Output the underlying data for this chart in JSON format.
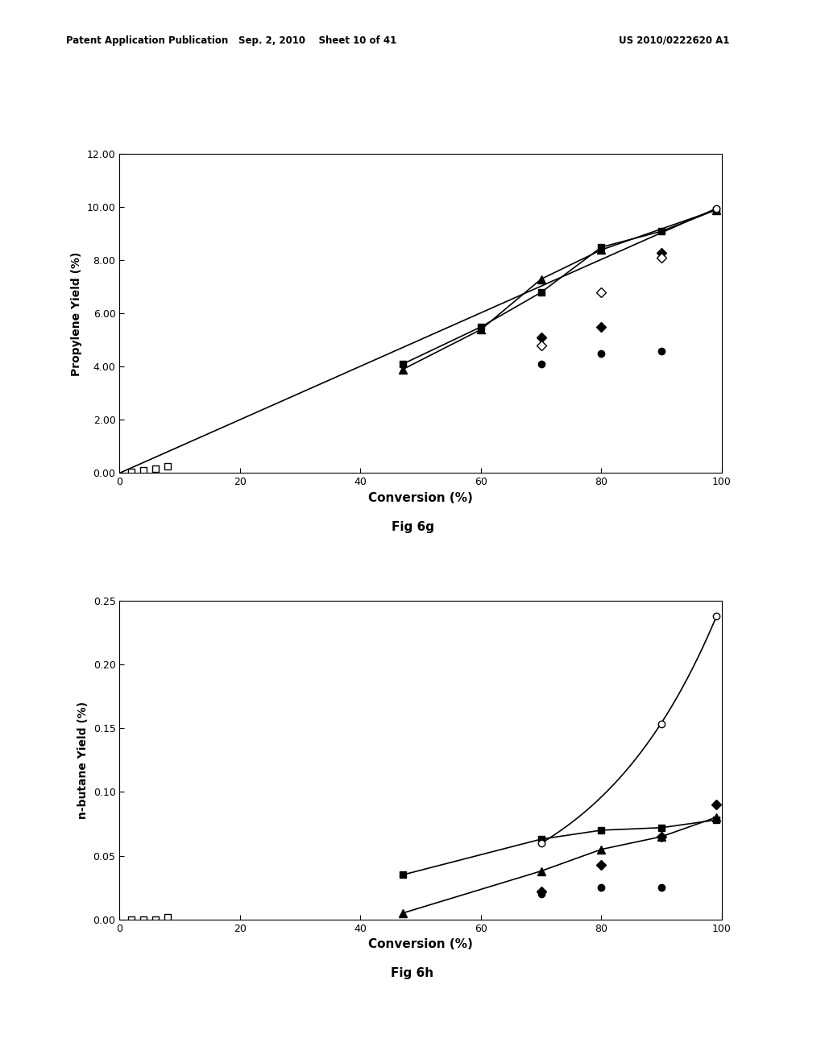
{
  "fig6g": {
    "title": "Fig 6g",
    "xlabel": "Conversion (%)",
    "ylabel": "Propylene Yield (%)",
    "xlim": [
      0,
      100
    ],
    "ylim": [
      0,
      12.0
    ],
    "yticks": [
      0.0,
      2.0,
      4.0,
      6.0,
      8.0,
      10.0,
      12.0
    ],
    "xticks": [
      0,
      20,
      40,
      60,
      80,
      100
    ],
    "series": [
      {
        "name": "open_square_scatter",
        "marker": "s",
        "filled": false,
        "x": [
          2,
          4,
          6,
          8
        ],
        "y": [
          0.05,
          0.1,
          0.15,
          0.25
        ],
        "line": false,
        "trendline": false
      },
      {
        "name": "filled_square_line",
        "marker": "s",
        "filled": true,
        "x": [
          47,
          60,
          70,
          80,
          90,
          99
        ],
        "y": [
          4.1,
          5.5,
          6.8,
          8.5,
          9.1,
          9.9
        ],
        "line": true,
        "trendline": false
      },
      {
        "name": "filled_triangle_line",
        "marker": "^",
        "filled": true,
        "x": [
          47,
          60,
          70,
          80,
          99
        ],
        "y": [
          3.9,
          5.4,
          7.3,
          8.4,
          9.9
        ],
        "line": true,
        "trendline": false
      },
      {
        "name": "open_circle_line",
        "marker": "o",
        "filled": false,
        "x": [
          99
        ],
        "y": [
          9.95
        ],
        "line_x": [
          0,
          99
        ],
        "line_y": [
          0,
          9.95
        ],
        "line": true,
        "trendline": true
      },
      {
        "name": "filled_diamond_scatter",
        "marker": "D",
        "filled": true,
        "x": [
          70,
          80,
          90
        ],
        "y": [
          5.1,
          5.5,
          8.3
        ],
        "line": false,
        "trendline": false
      },
      {
        "name": "open_diamond_scatter",
        "marker": "D",
        "filled": false,
        "x": [
          70,
          80,
          90
        ],
        "y": [
          4.8,
          6.8,
          8.1
        ],
        "line": false,
        "trendline": false
      },
      {
        "name": "filled_circle_scatter",
        "marker": "o",
        "filled": true,
        "x": [
          70,
          80,
          90
        ],
        "y": [
          4.1,
          4.5,
          4.6
        ],
        "line": false,
        "trendline": false
      }
    ]
  },
  "fig6h": {
    "title": "Fig 6h",
    "xlabel": "Conversion (%)",
    "ylabel": "n-butane Yield (%)",
    "xlim": [
      0,
      100
    ],
    "ylim": [
      0,
      0.25
    ],
    "yticks": [
      0.0,
      0.05,
      0.1,
      0.15,
      0.2,
      0.25
    ],
    "xticks": [
      0,
      20,
      40,
      60,
      80,
      100
    ],
    "series": [
      {
        "name": "open_square_scatter",
        "marker": "s",
        "filled": false,
        "x": [
          2,
          4,
          6,
          8
        ],
        "y": [
          0.0,
          0.0,
          0.0,
          0.002
        ],
        "line": false,
        "trendline": false
      },
      {
        "name": "filled_square_line",
        "marker": "s",
        "filled": true,
        "x": [
          47,
          70,
          80,
          90,
          99
        ],
        "y": [
          0.035,
          0.063,
          0.07,
          0.072,
          0.078
        ],
        "line": true,
        "trendline": false
      },
      {
        "name": "filled_triangle_line",
        "marker": "^",
        "filled": true,
        "x": [
          47,
          70,
          80,
          90,
          99
        ],
        "y": [
          0.005,
          0.038,
          0.055,
          0.065,
          0.08
        ],
        "line": true,
        "trendline": false
      },
      {
        "name": "open_circle_curve",
        "marker": "o",
        "filled": false,
        "x": [
          70,
          90,
          99
        ],
        "y": [
          0.06,
          0.153,
          0.238
        ],
        "line": true,
        "trendline": false,
        "smooth": true
      },
      {
        "name": "filled_diamond_scatter",
        "marker": "D",
        "filled": true,
        "x": [
          70,
          80,
          90,
          99
        ],
        "y": [
          0.022,
          0.043,
          0.065,
          0.09
        ],
        "line": false,
        "trendline": false
      },
      {
        "name": "filled_circle_scatter",
        "marker": "o",
        "filled": true,
        "x": [
          70,
          80,
          90
        ],
        "y": [
          0.02,
          0.025,
          0.025
        ],
        "line": false,
        "trendline": false
      }
    ]
  },
  "page_header": {
    "left": "Patent Application Publication",
    "center": "Sep. 2, 2010    Sheet 10 of 41",
    "right": "US 2010/0222620 A1"
  },
  "background_color": "#ffffff"
}
